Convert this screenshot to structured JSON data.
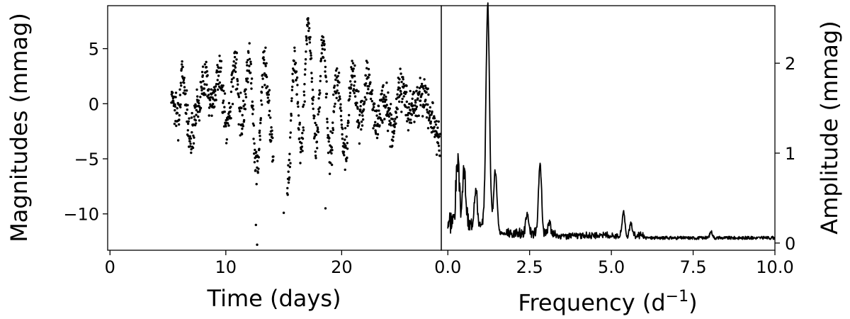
{
  "chart_data": [
    {
      "type": "scatter",
      "xlabel": "Time (days)",
      "ylabel": "Magnitudes (mmag)",
      "xlim": [
        -0.2,
        28.6
      ],
      "ylim": [
        -13.3,
        8.9
      ],
      "yaxis": "inverted",
      "xticks": [
        0,
        10,
        20
      ],
      "yticks": [
        5,
        0,
        -5,
        -10
      ],
      "grid": false,
      "segments": [
        {
          "t_start": 5.3,
          "t_end": 14.1,
          "anchors": [
            [
              5.3,
              1.0
            ],
            [
              5.8,
              -1.0
            ],
            [
              6.3,
              2.5
            ],
            [
              6.9,
              -3.0
            ],
            [
              7.6,
              0.0
            ],
            [
              8.2,
              2.5
            ],
            [
              8.8,
              0.0
            ],
            [
              9.4,
              2.8
            ],
            [
              10.1,
              -2.0
            ],
            [
              10.8,
              3.5
            ],
            [
              11.4,
              -1.5
            ],
            [
              12.0,
              4.0
            ],
            [
              12.7,
              -6.0
            ],
            [
              13.3,
              3.5
            ],
            [
              14.1,
              -3.5
            ]
          ]
        },
        {
          "t_start": 15.3,
          "t_end": 28.5,
          "anchors": [
            [
              15.3,
              -8.0
            ],
            [
              15.9,
              4.0
            ],
            [
              16.5,
              -4.0
            ],
            [
              17.1,
              7.0
            ],
            [
              17.8,
              -3.5
            ],
            [
              18.4,
              5.5
            ],
            [
              19.0,
              -4.5
            ],
            [
              19.6,
              2.5
            ],
            [
              20.3,
              -5.0
            ],
            [
              20.9,
              3.0
            ],
            [
              21.6,
              -1.5
            ],
            [
              22.3,
              2.5
            ],
            [
              23.0,
              -2.0
            ],
            [
              23.7,
              0.5
            ],
            [
              24.4,
              -2.5
            ],
            [
              25.1,
              1.5
            ],
            [
              26.0,
              -0.5
            ],
            [
              27.0,
              1.0
            ],
            [
              27.9,
              -1.5
            ],
            [
              28.5,
              -3.5
            ]
          ]
        }
      ],
      "outliers": [
        [
          12.6,
          -11.0
        ],
        [
          12.7,
          -12.8
        ],
        [
          15.0,
          -9.9
        ],
        [
          18.6,
          -9.5
        ]
      ]
    },
    {
      "type": "line",
      "xlabel": "Frequency (d",
      "xlabel_sup": "−1",
      "xlabel_end": ")",
      "ylabel": "Amplitude (mmag)",
      "xlim": [
        -0.2,
        10.0
      ],
      "ylim": [
        -0.08,
        2.64
      ],
      "xticks": [
        "0.0",
        "2.5",
        "5.0",
        "7.5",
        "10.0"
      ],
      "yticks": [
        0,
        1,
        2
      ],
      "grid": false,
      "peaks": [
        {
          "f": 0.3,
          "amp": 0.68,
          "w": 0.05
        },
        {
          "f": 0.5,
          "amp": 0.58,
          "w": 0.05
        },
        {
          "f": 0.85,
          "amp": 0.44,
          "w": 0.05
        },
        {
          "f": 1.22,
          "amp": 2.48,
          "w": 0.055
        },
        {
          "f": 1.45,
          "amp": 0.68,
          "w": 0.05
        },
        {
          "f": 2.42,
          "amp": 0.22,
          "w": 0.04
        },
        {
          "f": 2.82,
          "amp": 0.76,
          "w": 0.045
        },
        {
          "f": 3.1,
          "amp": 0.12,
          "w": 0.04
        },
        {
          "f": 5.37,
          "amp": 0.28,
          "w": 0.04
        },
        {
          "f": 5.6,
          "amp": 0.13,
          "w": 0.04
        },
        {
          "f": 8.05,
          "amp": 0.07,
          "w": 0.04
        }
      ],
      "baseline": 0.04,
      "f_start": 0.0,
      "f_end": 10.0
    }
  ]
}
